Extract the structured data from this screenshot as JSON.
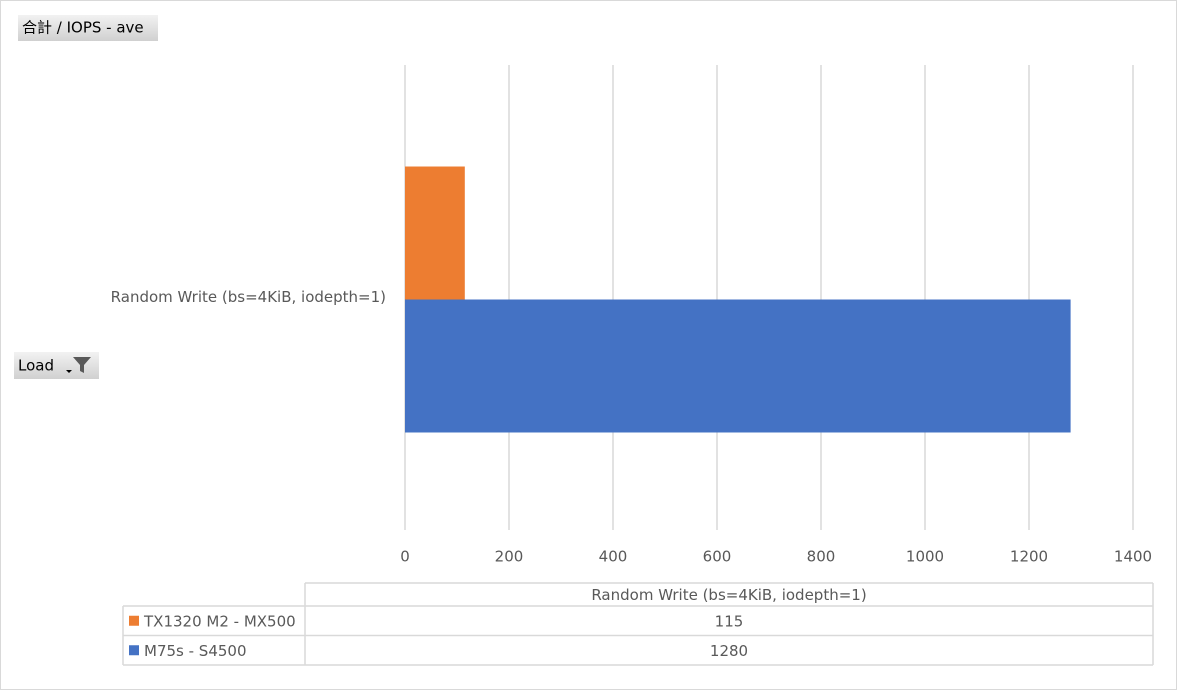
{
  "field_buttons": {
    "value": "合計 / IOPS - ave",
    "axis": "Load"
  },
  "chart_data": {
    "type": "bar",
    "categories": [
      "Random Write (bs=4KiB, iodepth=1)"
    ],
    "series": [
      {
        "name": "TX1320 M2 - MX500",
        "color": "#ed7d31",
        "values": [
          115
        ]
      },
      {
        "name": "M75s - S4500",
        "color": "#4472c4",
        "values": [
          1280
        ]
      }
    ],
    "xlim": [
      0,
      1400
    ],
    "xticks": [
      0,
      200,
      400,
      600,
      800,
      1000,
      1200,
      1400
    ],
    "grid": true,
    "data_table": true
  }
}
